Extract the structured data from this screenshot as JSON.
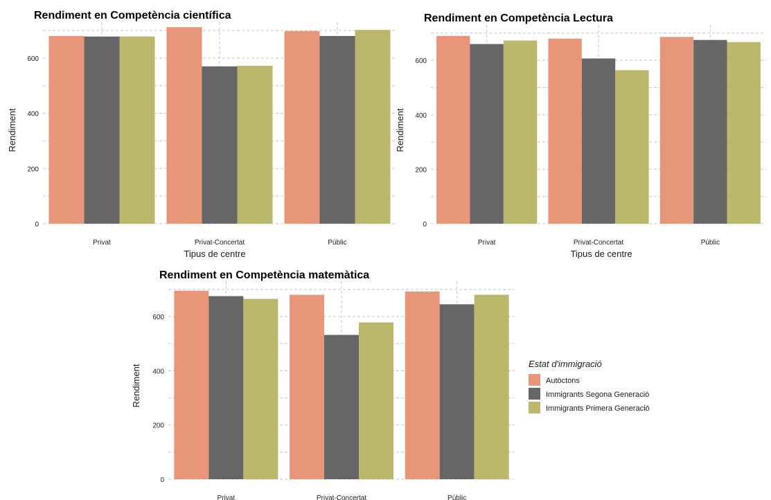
{
  "legend": {
    "title": "Estat d'immigració",
    "entries": [
      {
        "label": "Autòctons",
        "color": "#E8967A"
      },
      {
        "label": "Immigrants Segona Generació",
        "color": "#666666"
      },
      {
        "label": "Immigrants Primera Generació",
        "color": "#BDB76B"
      }
    ],
    "position": "right"
  },
  "chart_data": [
    {
      "type": "bar",
      "title": "Rendiment en Competència científica",
      "xlabel": "Tipus de centre",
      "ylabel": "Rendiment",
      "categories": [
        "Privat",
        "Privat-Concertat",
        "Públic"
      ],
      "ylim": [
        0,
        720
      ],
      "yticks": [
        0,
        200,
        400,
        600
      ],
      "grid": true,
      "series": [
        {
          "name": "Autòctons",
          "values": [
            680,
            712,
            698
          ]
        },
        {
          "name": "Immigrants Segona Generació",
          "values": [
            678,
            570,
            680
          ]
        },
        {
          "name": "Immigrants Primera Generació",
          "values": [
            678,
            572,
            702
          ]
        }
      ]
    },
    {
      "type": "bar",
      "title": "Rendiment en Competència Lectura",
      "xlabel": "Tipus de centre",
      "ylabel": "Rendiment",
      "categories": [
        "Privat",
        "Privat-Concertat",
        "Públic"
      ],
      "ylim": [
        0,
        720
      ],
      "yticks": [
        0,
        200,
        400,
        600
      ],
      "grid": true,
      "series": [
        {
          "name": "Autòctons",
          "values": [
            690,
            680,
            686
          ]
        },
        {
          "name": "Immigrants Segona Generació",
          "values": [
            660,
            607,
            675
          ]
        },
        {
          "name": "Immigrants Primera Generació",
          "values": [
            673,
            564,
            667
          ]
        }
      ]
    },
    {
      "type": "bar",
      "title": "Rendiment en Competència matemàtica",
      "xlabel": "",
      "ylabel": "Rendiment",
      "categories": [
        "Privat",
        "Privat-Concertat",
        "Públic"
      ],
      "ylim": [
        0,
        720
      ],
      "yticks": [
        0,
        200,
        400,
        600
      ],
      "grid": true,
      "series": [
        {
          "name": "Autòctons",
          "values": [
            695,
            680,
            692
          ]
        },
        {
          "name": "Immigrants Segona Generació",
          "values": [
            675,
            532,
            645
          ]
        },
        {
          "name": "Immigrants Primera Generació",
          "values": [
            665,
            578,
            680
          ]
        }
      ]
    }
  ]
}
